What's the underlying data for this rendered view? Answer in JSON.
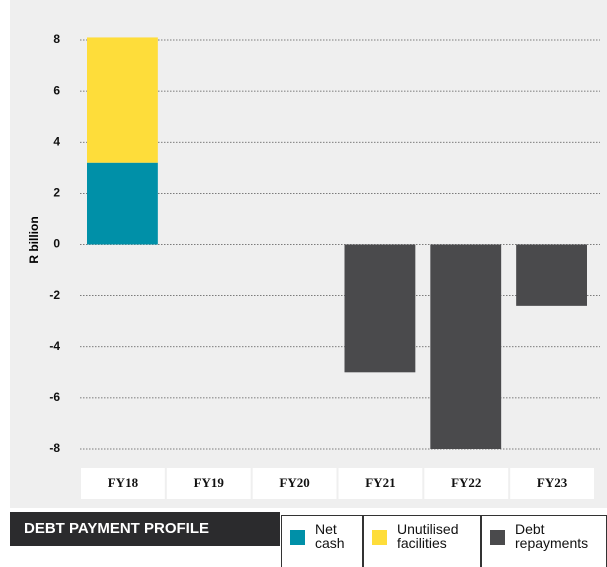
{
  "chart_data": {
    "type": "bar",
    "stacked": true,
    "title": "DEBT PAYMENT PROFILE",
    "y_label": "R billion",
    "categories": [
      "FY18",
      "FY19",
      "FY20",
      "FY21",
      "FY22",
      "FY23"
    ],
    "series": [
      {
        "name": "Net cash",
        "color": "#0090a8",
        "values": [
          3.2,
          null,
          null,
          null,
          null,
          null
        ]
      },
      {
        "name": "Unutilised facilities",
        "color": "#fedd3a",
        "values": [
          4.9,
          null,
          null,
          null,
          null,
          null
        ]
      },
      {
        "name": "Debt repayments",
        "color": "#4a4a4c",
        "values": [
          null,
          null,
          null,
          -5,
          -8,
          -2.4
        ]
      }
    ],
    "ylim": [
      -8,
      8
    ],
    "yticks": [
      8,
      6,
      4,
      2,
      0,
      -2,
      -4,
      -6,
      -8
    ],
    "grid": true
  }
}
